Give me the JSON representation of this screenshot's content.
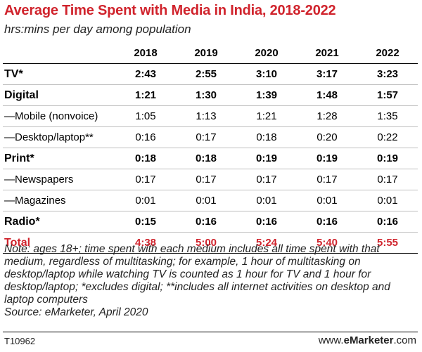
{
  "chart_data": {
    "type": "table",
    "title": "Average Time Spent with Media in India, 2018-2022",
    "subtitle": "hrs:mins per day among population",
    "columns": [
      "2018",
      "2019",
      "2020",
      "2021",
      "2022"
    ],
    "rows": [
      {
        "label": "TV*",
        "bold": true,
        "values": [
          "2:43",
          "2:55",
          "3:10",
          "3:17",
          "3:23"
        ]
      },
      {
        "label": "Digital",
        "bold": true,
        "values": [
          "1:21",
          "1:30",
          "1:39",
          "1:48",
          "1:57"
        ]
      },
      {
        "label": "—Mobile (nonvoice)",
        "bold": false,
        "values": [
          "1:05",
          "1:13",
          "1:21",
          "1:28",
          "1:35"
        ]
      },
      {
        "label": "—Desktop/laptop**",
        "bold": false,
        "values": [
          "0:16",
          "0:17",
          "0:18",
          "0:20",
          "0:22"
        ]
      },
      {
        "label": "Print*",
        "bold": true,
        "values": [
          "0:18",
          "0:18",
          "0:19",
          "0:19",
          "0:19"
        ]
      },
      {
        "label": "—Newspapers",
        "bold": false,
        "values": [
          "0:17",
          "0:17",
          "0:17",
          "0:17",
          "0:17"
        ]
      },
      {
        "label": "—Magazines",
        "bold": false,
        "values": [
          "0:01",
          "0:01",
          "0:01",
          "0:01",
          "0:01"
        ]
      },
      {
        "label": "Radio*",
        "bold": true,
        "values": [
          "0:15",
          "0:16",
          "0:16",
          "0:16",
          "0:16"
        ]
      }
    ],
    "total": {
      "label": "Total",
      "values": [
        "4:38",
        "5:00",
        "5:24",
        "5:40",
        "5:55"
      ]
    },
    "note": "Note: ages 18+; time spent with each medium includes all time spent with that medium, regardless of multitasking; for example, 1 hour of multitasking on desktop/laptop while watching TV is counted as 1 hour for TV and 1 hour for desktop/laptop; *excludes digital; **includes all internet activities on desktop and laptop computers",
    "source": "Source: eMarketer, April 2020"
  },
  "footer": {
    "code": "T10962",
    "brand_prefix": "www.",
    "brand_e": "e",
    "brand_name": "Marketer",
    "brand_tld": ".com"
  },
  "colors": {
    "accent": "#d0232c",
    "text": "#000000",
    "rule": "#bfbfbf"
  }
}
